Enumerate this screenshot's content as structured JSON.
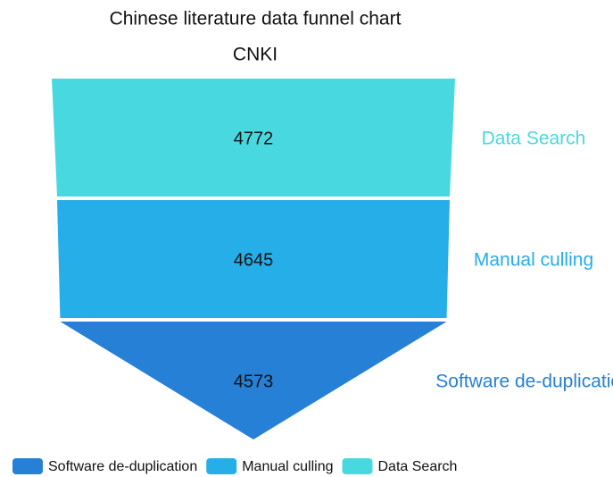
{
  "chart_data": {
    "type": "funnel",
    "title": "Chinese literature data funnel chart",
    "subtitle": "CNKI",
    "categories": [
      "Data Search",
      "Manual culling",
      "Software de-duplication"
    ],
    "values": [
      4772,
      4645,
      4573
    ],
    "colors": [
      "#48d9e0",
      "#25aee8",
      "#2680d5"
    ],
    "legend": "bottom"
  }
}
